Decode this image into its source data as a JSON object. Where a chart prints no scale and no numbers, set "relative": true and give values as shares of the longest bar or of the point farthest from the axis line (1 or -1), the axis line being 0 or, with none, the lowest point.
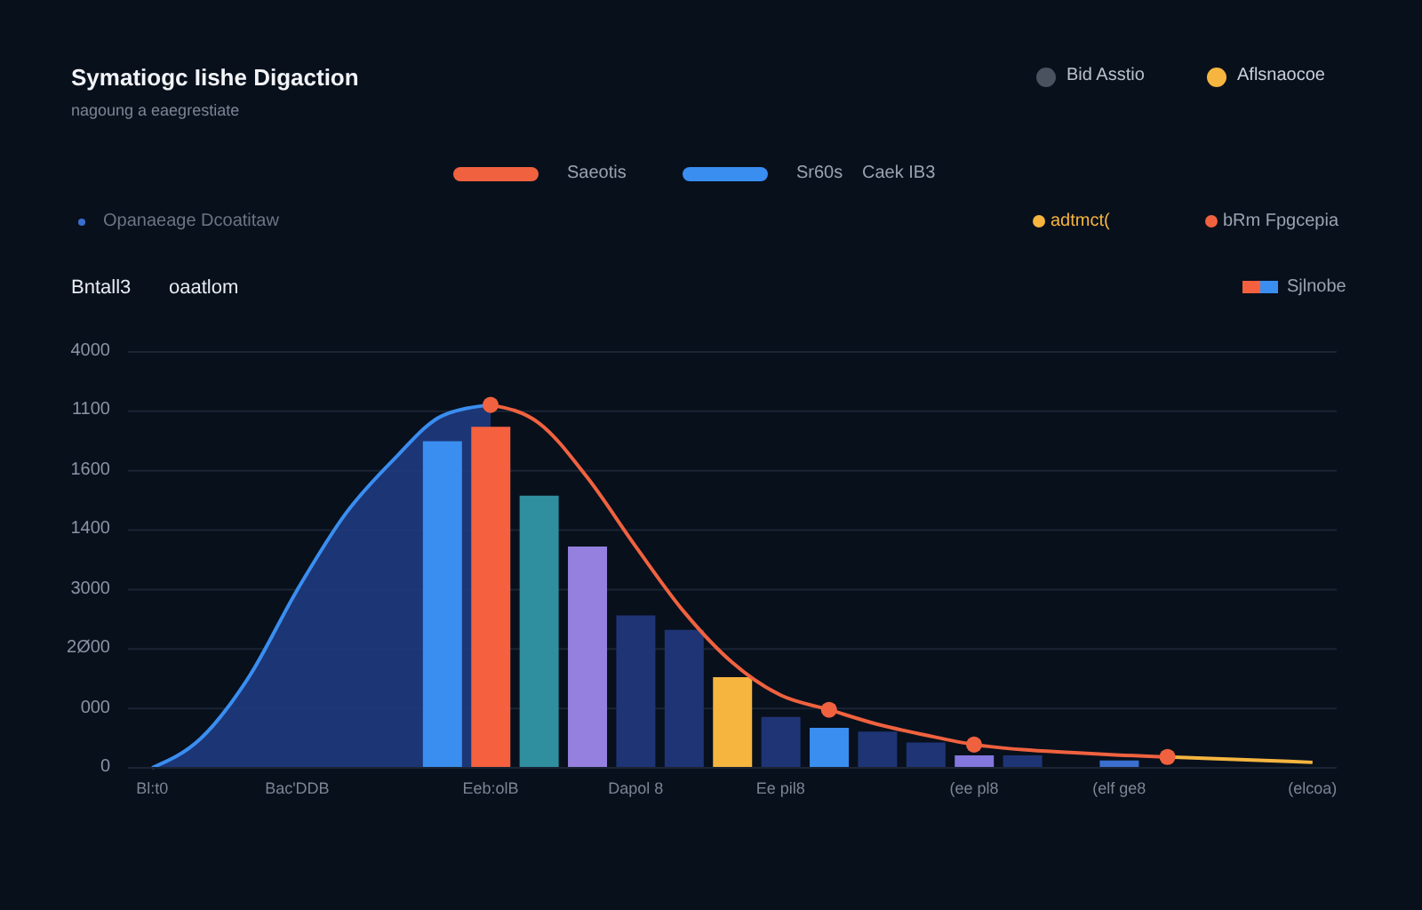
{
  "chart_data": {
    "type": "area",
    "title": "Symatiogc Iishe Digaction",
    "subtitle": "nagoung a eaegrestiate",
    "relative": true,
    "annotations": [
      "Bid Asstio",
      "Aflsnaocoe",
      "Caek IB3",
      "Opanaeage Dcoatitaw",
      "Bntall3",
      "oaatlom",
      "0",
      "000",
      "2Ø00",
      "3000",
      "1400",
      "1600",
      "1100",
      "4000"
    ],
    "categories": [
      "Bl:t0",
      null,
      null,
      "Bac'DDB",
      null,
      null,
      null,
      "Eeb:olB",
      null,
      null,
      "Dapol 8",
      null,
      null,
      "Ee pil8",
      null,
      null,
      null,
      "(ee pl8",
      null,
      null,
      "(elf ge8",
      null,
      null,
      null,
      "(elcoa)"
    ],
    "grid": "y",
    "legend": "top",
    "series": [
      {
        "name": "Sr60s",
        "color": "#3a8ef0",
        "values": [
          0,
          0.08,
          0.25,
          0.49,
          0.7,
          0.85,
          0.97,
          1,
          null,
          null,
          null,
          null,
          null,
          null,
          null,
          null,
          null,
          null,
          null,
          null,
          null,
          null,
          null,
          null,
          null
        ]
      },
      {
        "type": "line",
        "name": "Saeotis",
        "color": "#f0623f",
        "values": [
          null,
          null,
          null,
          null,
          null,
          null,
          null,
          1,
          0.95,
          0.8,
          0.61,
          0.43,
          0.29,
          0.2,
          0.16,
          0.12,
          0.09,
          0.064,
          0.05,
          0.042,
          0.035,
          0.03,
          null,
          null,
          null
        ]
      },
      {
        "type": "line",
        "name": "adtmct(",
        "color": "#f5b53f",
        "values": [
          null,
          null,
          null,
          null,
          null,
          null,
          null,
          null,
          null,
          null,
          null,
          null,
          null,
          null,
          null,
          null,
          null,
          null,
          null,
          null,
          null,
          0.03,
          0.025,
          0.02,
          0.015
        ]
      },
      {
        "type": "scatter",
        "name": "bRm Fpgcepia",
        "color": "#f0623f",
        "values": [
          null,
          null,
          null,
          null,
          null,
          null,
          null,
          1,
          null,
          null,
          null,
          null,
          null,
          null,
          0.16,
          null,
          null,
          0.064,
          null,
          null,
          null,
          0.03,
          null,
          null,
          null
        ]
      },
      {
        "type": "bar",
        "name": "Sjlnobe",
        "color": "#3a8ef0",
        "values": [
          null,
          null,
          null,
          null,
          null,
          null,
          0.9,
          0.94,
          0.75,
          0.61,
          null,
          null,
          0.25,
          null,
          0.11,
          null,
          null,
          0.034,
          null,
          null,
          0.02,
          null,
          null,
          null,
          null
        ],
        "colors": [
          null,
          null,
          null,
          null,
          null,
          null,
          "#3a8ef0",
          "#f5613f",
          "#2f8f9e",
          "#9580e0",
          null,
          null,
          "#f5b53f",
          null,
          "#3a8ef0",
          null,
          null,
          "#8477dd",
          null,
          null,
          "#3a6fd0",
          null,
          null,
          null,
          null
        ]
      },
      {
        "type": "bar",
        "color": "#1f3475",
        "values": [
          null,
          null,
          null,
          null,
          null,
          null,
          null,
          null,
          null,
          null,
          0.42,
          0.38,
          null,
          0.14,
          null,
          0.1,
          0.07,
          null,
          0.034,
          null,
          null,
          null,
          null,
          null,
          null
        ]
      }
    ]
  }
}
